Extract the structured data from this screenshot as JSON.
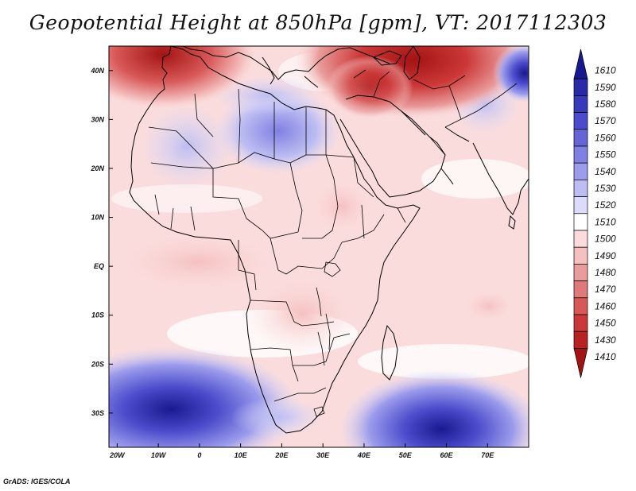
{
  "title": "Geopotential Height at 850hPa [gpm], VT: 2017112303",
  "credit": "GrADS: IGES/COLA",
  "map": {
    "variable": "Geopotential Height",
    "level": "850hPa",
    "units": "gpm",
    "valid_time": "2017112303",
    "lon_range": [
      -22,
      80
    ],
    "lat_range": [
      -37,
      45
    ],
    "lon_ticks": [
      "20W",
      "10W",
      "0",
      "10E",
      "20E",
      "30E",
      "40E",
      "50E",
      "60E",
      "70E"
    ],
    "lat_ticks": [
      "40N",
      "30N",
      "20N",
      "10N",
      "EQ",
      "10S",
      "20S",
      "30S"
    ]
  },
  "colorbar": {
    "levels": [
      "1610",
      "1590",
      "1580",
      "1570",
      "1560",
      "1550",
      "1540",
      "1530",
      "1520",
      "1510",
      "1500",
      "1490",
      "1480",
      "1470",
      "1460",
      "1450",
      "1430",
      "1410"
    ],
    "colors": [
      "#19198f",
      "#2a2aa6",
      "#3939bb",
      "#4b4bcc",
      "#6565d8",
      "#8080e2",
      "#9c9cec",
      "#bdbdf3",
      "#dcdcfa",
      "#ffffff",
      "#fbdcdc",
      "#f5c0c0",
      "#ea9c9c",
      "#df7a7a",
      "#d85858",
      "#cc3838",
      "#b82222",
      "#a31313"
    ]
  }
}
